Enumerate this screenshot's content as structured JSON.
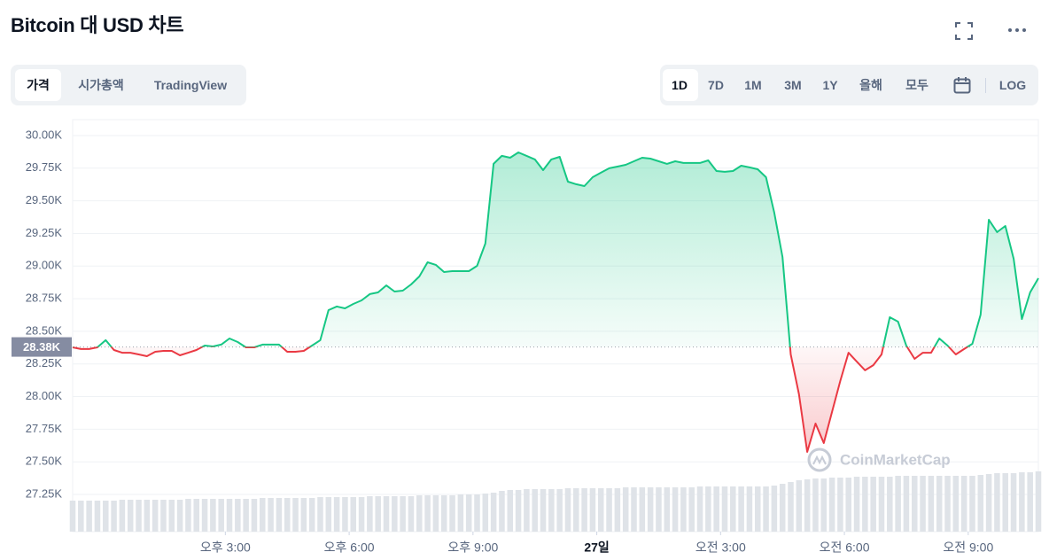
{
  "header": {
    "title": "Bitcoin 대 USD 차트"
  },
  "tabs": [
    "가격",
    "시가총액",
    "TradingView"
  ],
  "ranges": [
    "1D",
    "7D",
    "1M",
    "3M",
    "1Y",
    "올해",
    "모두"
  ],
  "log_button": "LOG",
  "chart_data": {
    "type": "line",
    "watermark": "CoinMarketCap",
    "x": [
      11.3,
      11.5,
      11.7,
      11.9,
      12.1,
      12.3,
      12.5,
      12.7,
      12.9,
      13.1,
      13.3,
      13.5,
      13.7,
      13.9,
      14.1,
      14.3,
      14.5,
      14.7,
      14.9,
      15.1,
      15.3,
      15.5,
      15.7,
      15.9,
      16.1,
      16.3,
      16.5,
      16.7,
      16.9,
      17.1,
      17.3,
      17.5,
      17.7,
      17.9,
      18.1,
      18.3,
      18.5,
      18.7,
      18.9,
      19.1,
      19.3,
      19.5,
      19.7,
      19.9,
      20.1,
      20.3,
      20.5,
      20.7,
      20.9,
      21.1,
      21.3,
      21.5,
      21.7,
      21.9,
      22.1,
      22.3,
      22.5,
      22.7,
      22.9,
      23.1,
      23.3,
      23.5,
      23.7,
      23.9,
      24.1,
      24.3,
      24.5,
      24.7,
      24.9,
      25.1,
      25.3,
      25.5,
      25.7,
      25.9,
      26.1,
      26.3,
      26.5,
      26.7,
      26.9,
      27.1,
      27.3,
      27.5,
      27.7,
      27.9,
      28.1,
      28.3,
      28.5,
      28.7,
      28.9,
      29.1,
      29.3,
      29.5,
      29.7,
      29.9,
      30.1,
      30.3,
      30.5,
      30.7,
      30.9,
      31.1,
      31.3,
      31.5,
      31.7,
      31.9,
      32.1,
      32.3,
      32.5,
      32.7,
      32.9,
      33.1,
      33.3,
      33.5,
      33.7,
      33.9,
      34.1,
      34.3,
      34.5,
      34.7
    ],
    "values": [
      28377,
      28364,
      28364,
      28377,
      28432,
      28357,
      28336,
      28336,
      28323,
      28309,
      28343,
      28350,
      28350,
      28316,
      28336,
      28357,
      28391,
      28384,
      28398,
      28445,
      28418,
      28377,
      28377,
      28398,
      28398,
      28398,
      28343,
      28343,
      28350,
      28391,
      28432,
      28662,
      28690,
      28676,
      28710,
      28737,
      28785,
      28798,
      28852,
      28805,
      28812,
      28859,
      28920,
      29029,
      29009,
      28954,
      28961,
      28961,
      28961,
      29002,
      29172,
      29783,
      29844,
      29830,
      29871,
      29844,
      29817,
      29735,
      29817,
      29837,
      29647,
      29627,
      29613,
      29681,
      29715,
      29749,
      29762,
      29776,
      29803,
      29830,
      29823,
      29803,
      29783,
      29803,
      29790,
      29790,
      29790,
      29810,
      29728,
      29722,
      29728,
      29769,
      29756,
      29742,
      29681,
      29409,
      29070,
      28323,
      28017,
      27576,
      27793,
      27644,
      27882,
      28119,
      28336,
      28268,
      28201,
      28241,
      28323,
      28608,
      28574,
      28391,
      28289,
      28336,
      28336,
      28445,
      28391,
      28323,
      28364,
      28404,
      28628,
      29355,
      29260,
      29307,
      29056,
      28594,
      28798,
      28907
    ],
    "volume": [
      35,
      35,
      35,
      35,
      35,
      35,
      36,
      36,
      36,
      36,
      36,
      36,
      36,
      36,
      37,
      37,
      37,
      37,
      37,
      37,
      37,
      37,
      37,
      38,
      38,
      38,
      38,
      38,
      38,
      38,
      39,
      39,
      39,
      39,
      39,
      39,
      40,
      40,
      40,
      40,
      40,
      40,
      41,
      41,
      41,
      41,
      41,
      42,
      42,
      42,
      43,
      44,
      46,
      47,
      47,
      48,
      48,
      48,
      48,
      48,
      49,
      49,
      49,
      49,
      49,
      49,
      49,
      50,
      50,
      50,
      50,
      50,
      50,
      50,
      50,
      50,
      51,
      51,
      51,
      51,
      51,
      51,
      51,
      51,
      51,
      52,
      54,
      56,
      58,
      59,
      60,
      60,
      61,
      61,
      61,
      62,
      62,
      62,
      62,
      62,
      63,
      63,
      63,
      63,
      63,
      63,
      63,
      63,
      63,
      63,
      64,
      65,
      66,
      66,
      66,
      67,
      67,
      68
    ],
    "color_up": "#16c784",
    "color_down": "#ea3943",
    "baseline": {
      "value": 28380,
      "label": "28.38K"
    },
    "xlim": [
      11.3,
      34.7
    ],
    "ylim": [
      26965,
      30122
    ],
    "log_scale": false,
    "grid": true,
    "xticks": [
      {
        "value": 15,
        "label": "오후 3:00"
      },
      {
        "value": 18,
        "label": "오후 6:00"
      },
      {
        "value": 21,
        "label": "오후 9:00"
      },
      {
        "value": 24,
        "label": "27일"
      },
      {
        "value": 27,
        "label": "오전 3:00"
      },
      {
        "value": 30,
        "label": "오전 6:00"
      },
      {
        "value": 33,
        "label": "오전 9:00"
      }
    ],
    "yticks": [
      {
        "value": 27250,
        "label": "27.25K"
      },
      {
        "value": 27500,
        "label": "27.50K"
      },
      {
        "value": 27750,
        "label": "27.75K"
      },
      {
        "value": 28000,
        "label": "28.00K"
      },
      {
        "value": 28250,
        "label": "28.25K"
      },
      {
        "value": 28500,
        "label": "28.50K"
      },
      {
        "value": 28750,
        "label": "28.75K"
      },
      {
        "value": 29000,
        "label": "29.00K"
      },
      {
        "value": 29250,
        "label": "29.25K"
      },
      {
        "value": 29500,
        "label": "29.50K"
      },
      {
        "value": 29750,
        "label": "29.75K"
      },
      {
        "value": 30000,
        "label": "30.00K"
      }
    ]
  }
}
